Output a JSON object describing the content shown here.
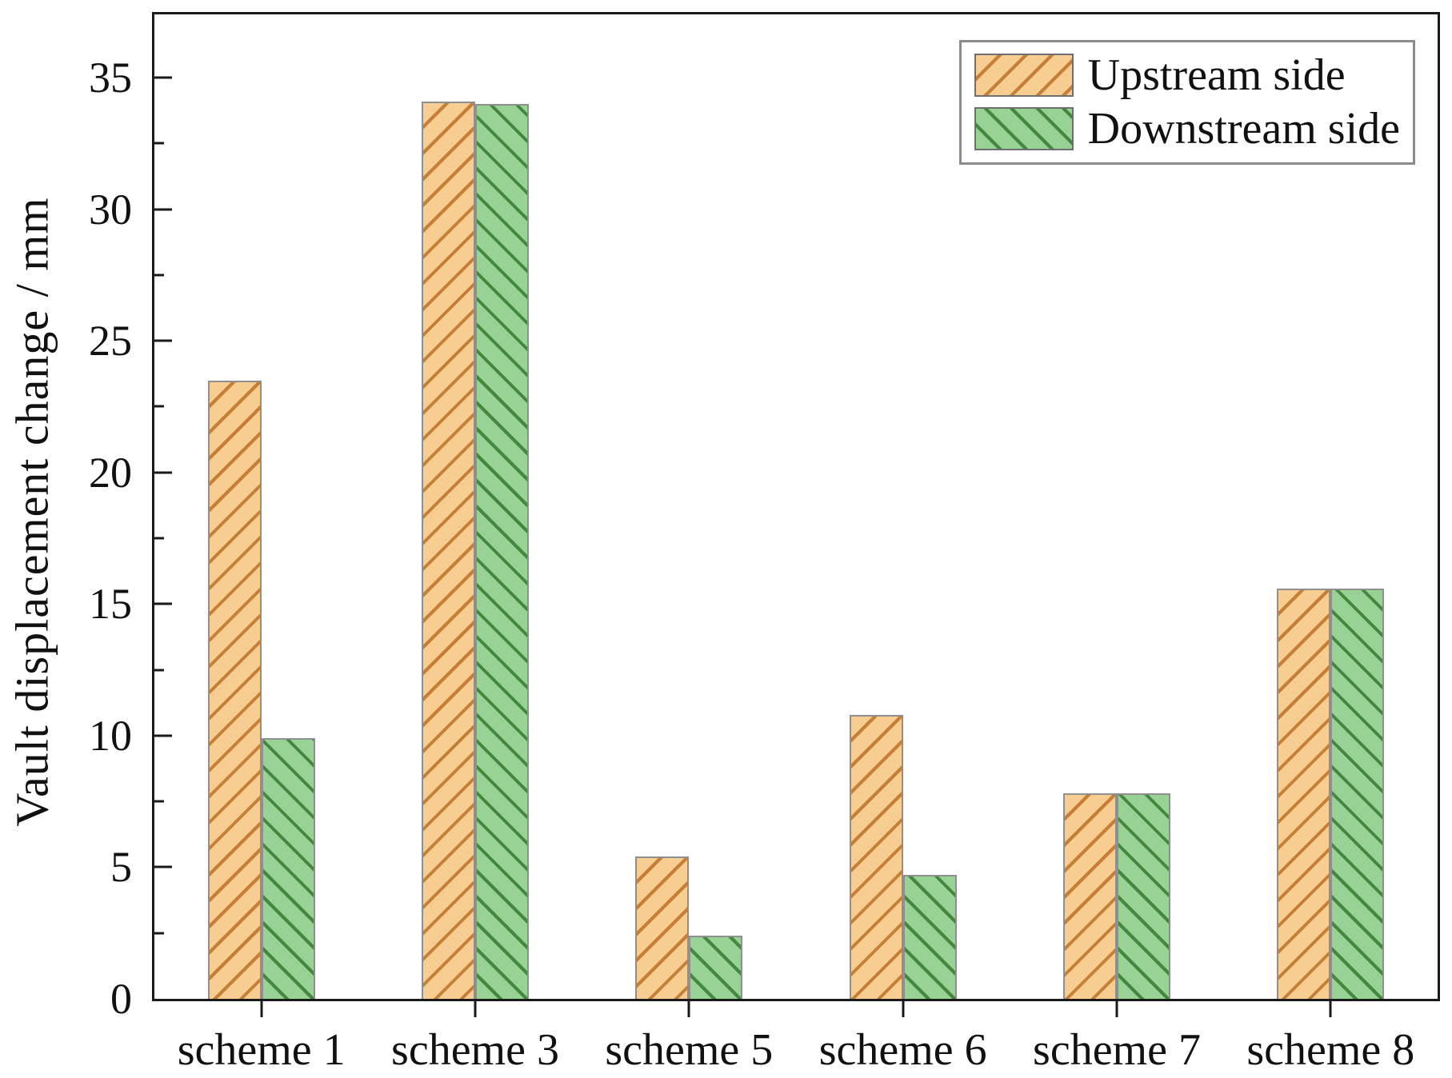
{
  "chart_data": {
    "type": "bar",
    "title": "",
    "xlabel": "",
    "ylabel": "Vault displacement change / mm",
    "categories": [
      "scheme 1",
      "scheme 3",
      "scheme 5",
      "scheme 6",
      "scheme 7",
      "scheme 8"
    ],
    "series": [
      {
        "name": "Upstream side",
        "values": [
          23.5,
          34.1,
          5.4,
          10.8,
          7.8,
          15.6
        ],
        "fill": "#F8CD92",
        "hatch_color": "#C67F35",
        "hatch_direction": "/"
      },
      {
        "name": "Downstream side",
        "values": [
          9.9,
          34.0,
          2.4,
          4.7,
          7.8,
          15.6
        ],
        "fill": "#98D294",
        "hatch_color": "#44883F",
        "hatch_direction": "\\"
      }
    ],
    "ylim": [
      0,
      37.4
    ],
    "yticks_major": [
      0,
      5,
      10,
      15,
      20,
      25,
      30,
      35
    ],
    "yticks_minor": [
      2.5,
      7.5,
      12.5,
      17.5,
      22.5,
      27.5,
      32.5
    ],
    "legend_position": "top-right",
    "grid": false,
    "axis_color": "#1a1a1a"
  }
}
